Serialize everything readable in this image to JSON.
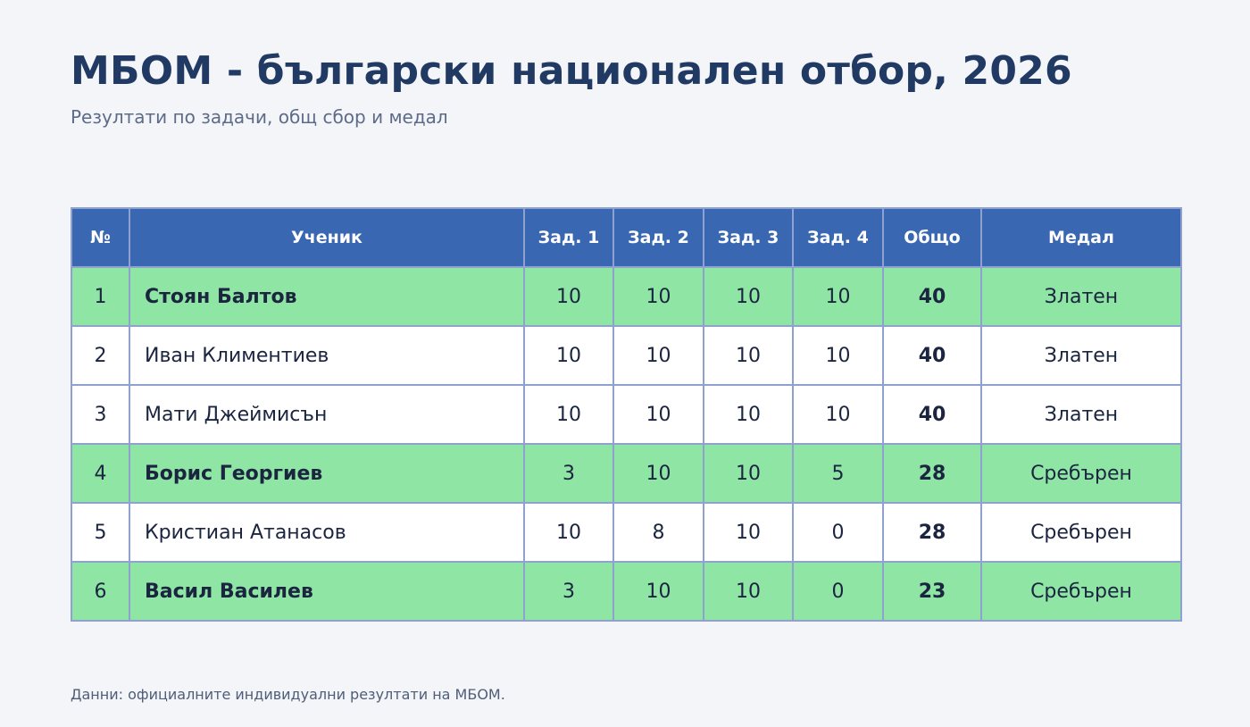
{
  "header": {
    "title": "МБОМ - български национален отбор, 2026",
    "subtitle": "Резултати по задачи, общ сбор и медал"
  },
  "table": {
    "columns": [
      "№",
      "Ученик",
      "Зад. 1",
      "Зад. 2",
      "Зад. 3",
      "Зад. 4",
      "Общо",
      "Медал"
    ],
    "rows": [
      {
        "rank": "1",
        "name": "Стоян Балтов",
        "p1": "10",
        "p2": "10",
        "p3": "10",
        "p4": "10",
        "total": "40",
        "medal": "Златен",
        "highlighted": true
      },
      {
        "rank": "2",
        "name": "Иван Климентиев",
        "p1": "10",
        "p2": "10",
        "p3": "10",
        "p4": "10",
        "total": "40",
        "medal": "Златен",
        "highlighted": false
      },
      {
        "rank": "3",
        "name": "Мати Джеймисън",
        "p1": "10",
        "p2": "10",
        "p3": "10",
        "p4": "10",
        "total": "40",
        "medal": "Златен",
        "highlighted": false
      },
      {
        "rank": "4",
        "name": "Борис Георгиев",
        "p1": "3",
        "p2": "10",
        "p3": "10",
        "p4": "5",
        "total": "28",
        "medal": "Сребърен",
        "highlighted": true
      },
      {
        "rank": "5",
        "name": "Кристиан Атанасов",
        "p1": "10",
        "p2": "8",
        "p3": "10",
        "p4": "0",
        "total": "28",
        "medal": "Сребърен",
        "highlighted": false
      },
      {
        "rank": "6",
        "name": "Васил Василев",
        "p1": "3",
        "p2": "10",
        "p3": "10",
        "p4": "0",
        "total": "23",
        "medal": "Сребърен",
        "highlighted": true
      }
    ]
  },
  "footnote": "Данни: официалните индивидуални резултати на МБОМ.",
  "colors": {
    "header_bg": "#3967b2",
    "highlight_row": "#8ee5a4",
    "title": "#213a63"
  }
}
